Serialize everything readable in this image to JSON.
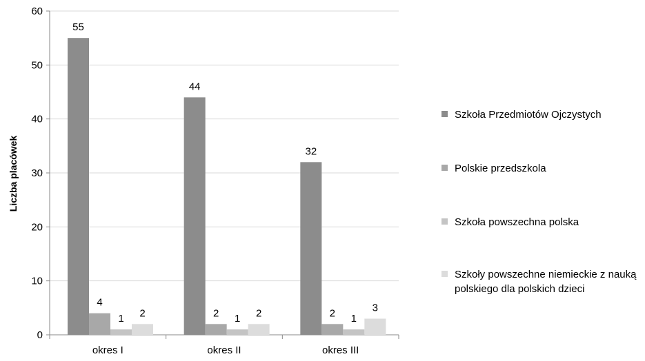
{
  "chart_data": {
    "type": "bar",
    "categories": [
      "okres I",
      "okres II",
      "okres III"
    ],
    "series": [
      {
        "name": "Szkoła Przedmiotów Ojczystych",
        "values": [
          55,
          44,
          32
        ],
        "color": "#8c8c8c"
      },
      {
        "name": "Polskie przedszkola",
        "values": [
          4,
          2,
          2
        ],
        "color": "#a8a8a8"
      },
      {
        "name": "Szkoła powszechna polska",
        "values": [
          1,
          1,
          1
        ],
        "color": "#c4c4c4"
      },
      {
        "name": "Szkoły powszechne niemieckie z nauką polskiego dla polskich dzieci",
        "values": [
          2,
          2,
          3
        ],
        "color": "#dcdcdc"
      }
    ],
    "title": "",
    "xlabel": "",
    "ylabel": "Liczba placówek",
    "ylim": [
      0,
      60
    ],
    "yticks": [
      0,
      10,
      20,
      30,
      40,
      50,
      60
    ],
    "grid": true,
    "legend_position": "right"
  }
}
